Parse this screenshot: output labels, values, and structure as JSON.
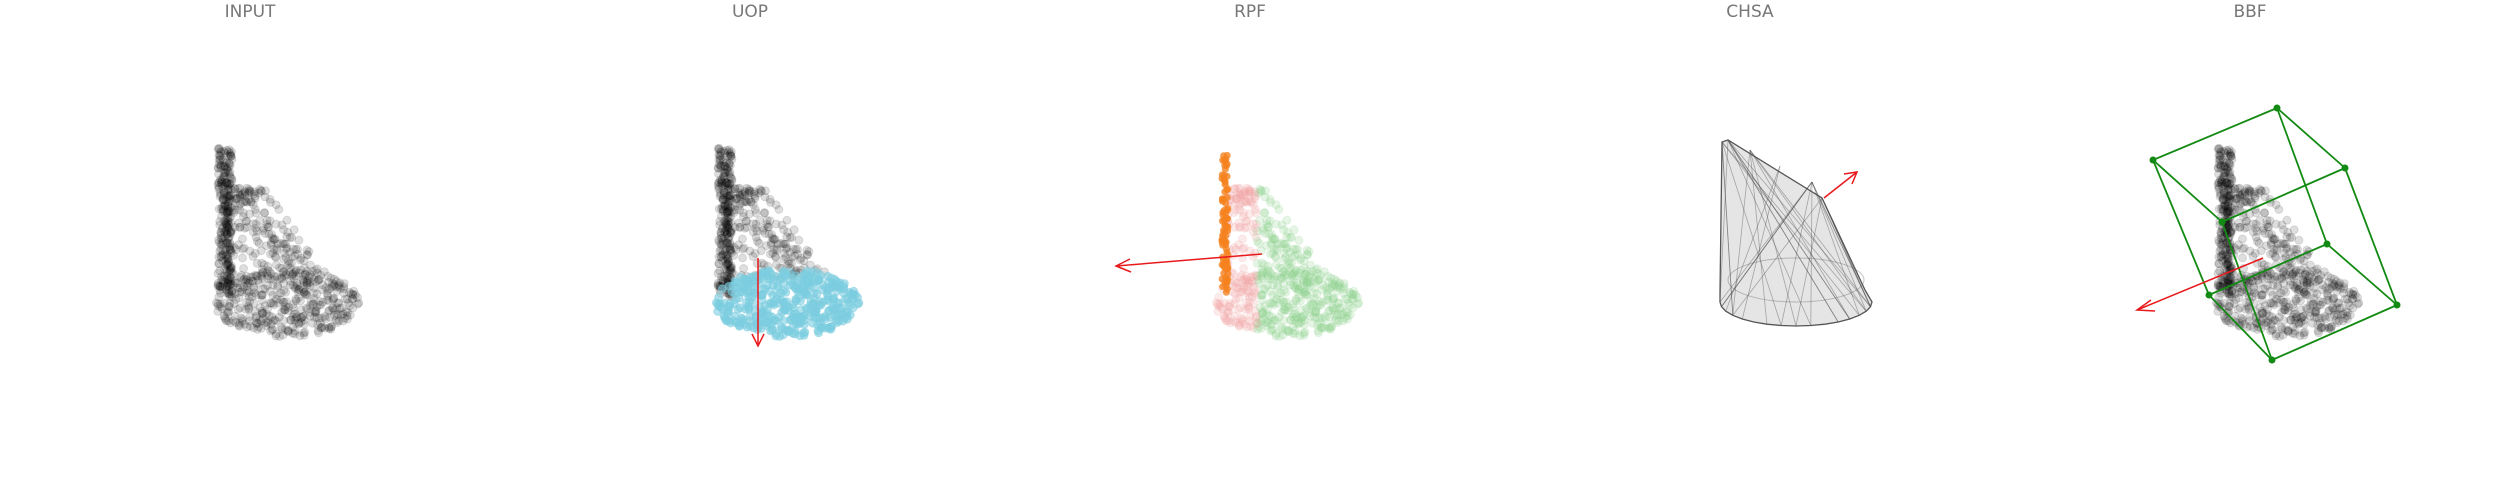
{
  "panels": [
    {
      "title": "INPUT"
    },
    {
      "title": "UOP"
    },
    {
      "title": "RPF"
    },
    {
      "title": "CHSA"
    },
    {
      "title": "BBF"
    }
  ],
  "colors": {
    "points": "#000000",
    "uop_highlight": "#7ccde0",
    "rpf_vertical": "#f5821f",
    "rpf_red": "#f2a5a5",
    "rpf_green": "#8fd18f",
    "arrow": "#e8191c",
    "box": "#138a13",
    "hull": "#555555"
  }
}
